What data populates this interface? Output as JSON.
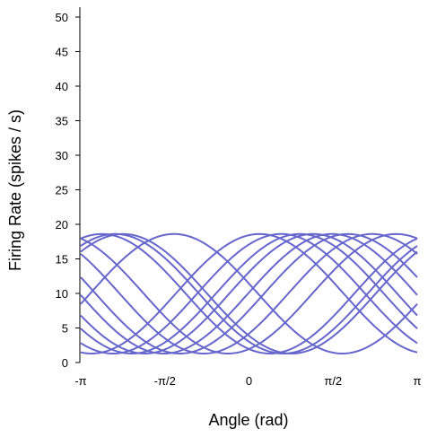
{
  "chart_data": {
    "type": "line",
    "title": "",
    "xlabel": "Angle (rad)",
    "ylabel": "Firing Rate (spikes / s)",
    "xlim": [
      -3.14159,
      3.14159
    ],
    "ylim": [
      0,
      52
    ],
    "x_ticks": [
      {
        "value": -3.14159,
        "label": "-π"
      },
      {
        "value": -1.5708,
        "label": "-π/2"
      },
      {
        "value": 0,
        "label": "0"
      },
      {
        "value": 1.5708,
        "label": "π/2"
      },
      {
        "value": 3.14159,
        "label": "π"
      }
    ],
    "y_ticks": [
      0,
      5,
      10,
      15,
      20,
      25,
      30,
      35,
      40,
      45,
      50
    ],
    "grid": false,
    "line_color": "#6666cc",
    "series": [
      {
        "baseline": 1.3,
        "amplitude": 17.3,
        "preferred_direction": 0.2
      },
      {
        "baseline": 1.3,
        "amplitude": 17.3,
        "preferred_direction": 0.6
      },
      {
        "baseline": 1.3,
        "amplitude": 17.3,
        "preferred_direction": 0.95
      },
      {
        "baseline": 1.3,
        "amplitude": 17.3,
        "preferred_direction": 1.2
      },
      {
        "baseline": 1.3,
        "amplitude": 17.3,
        "preferred_direction": 1.55
      },
      {
        "baseline": 1.3,
        "amplitude": 17.3,
        "preferred_direction": 1.85
      },
      {
        "baseline": 1.3,
        "amplitude": 17.3,
        "preferred_direction": 2.3
      },
      {
        "baseline": 1.3,
        "amplitude": 17.3,
        "preferred_direction": 2.75
      },
      {
        "baseline": 1.3,
        "amplitude": 17.3,
        "preferred_direction": -2.75
      },
      {
        "baseline": 1.3,
        "amplitude": 17.3,
        "preferred_direction": -2.5
      },
      {
        "baseline": 1.3,
        "amplitude": 17.3,
        "preferred_direction": -2.35
      },
      {
        "baseline": 1.3,
        "amplitude": 17.3,
        "preferred_direction": -1.4
      }
    ]
  }
}
